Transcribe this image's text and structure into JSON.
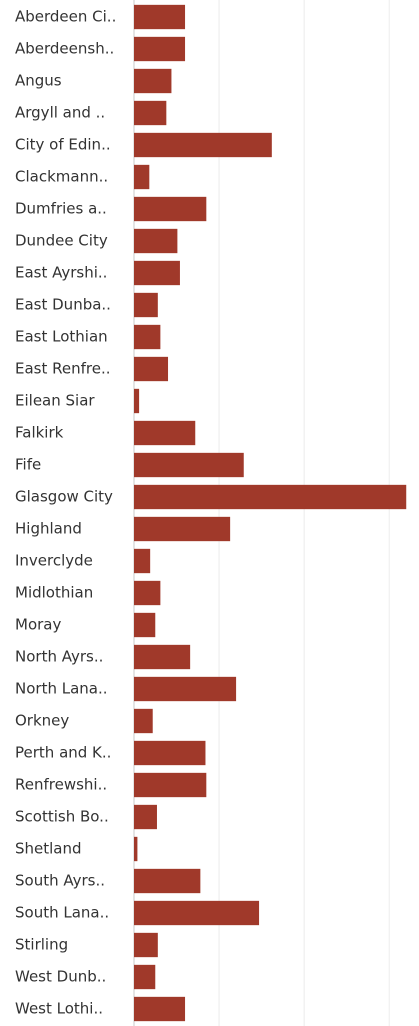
{
  "chart_data": {
    "type": "hbar",
    "categories": [
      "Aberdeen Ci..",
      "Aberdeensh..",
      "Angus",
      "Argyll and ..",
      "City of Edin..",
      "Clackmann..",
      "Dumfries a..",
      "Dundee City",
      "East Ayrshi..",
      "East Dunba..",
      "East Lothian",
      "East Renfre..",
      "Eilean Siar",
      "Falkirk",
      "Fife",
      "Glasgow City",
      "Highland",
      "Inverclyde",
      "Midlothian",
      "Moray",
      "North Ayrs..",
      "North Lana..",
      "Orkney",
      "Perth and K..",
      "Renfrewshi..",
      "Scottish Bo..",
      "Shetland",
      "South Ayrs..",
      "South Lana..",
      "Stirling",
      "West Dunb..",
      "West Lothi.."
    ],
    "values": [
      0.6,
      0.6,
      0.44,
      0.38,
      1.62,
      0.18,
      0.85,
      0.51,
      0.54,
      0.28,
      0.31,
      0.4,
      0.06,
      0.72,
      1.29,
      3.2,
      1.13,
      0.19,
      0.31,
      0.25,
      0.66,
      1.2,
      0.22,
      0.84,
      0.85,
      0.27,
      0.04,
      0.78,
      1.47,
      0.28,
      0.25,
      0.6
    ],
    "color": "#a0392a",
    "xlim": [
      0,
      3.35
    ],
    "xticks": [
      0,
      1,
      2,
      3
    ],
    "grid": true
  }
}
